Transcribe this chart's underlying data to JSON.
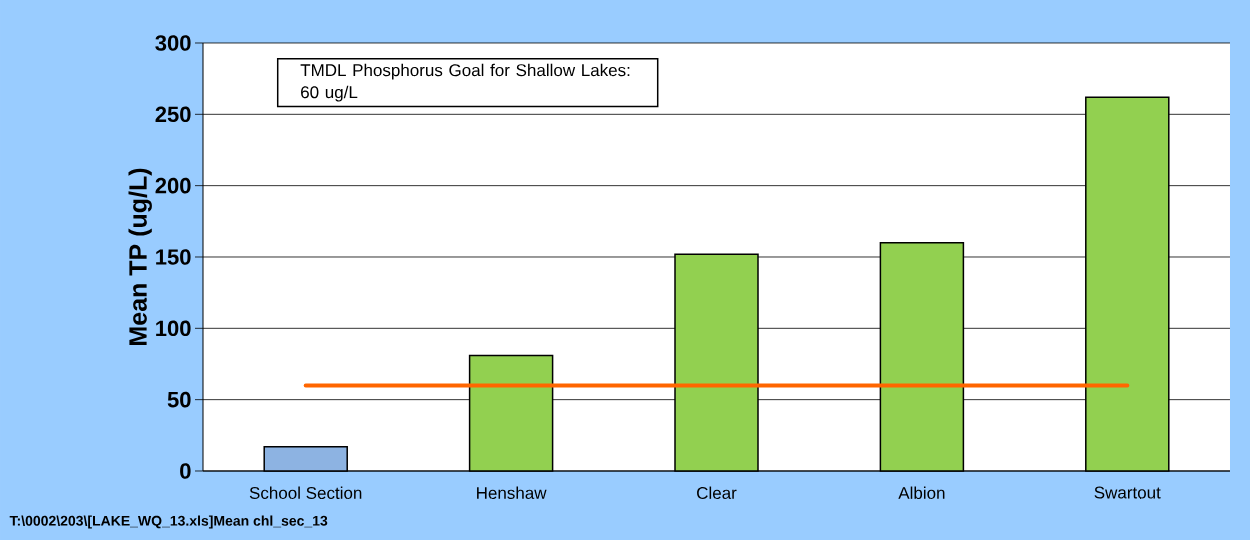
{
  "chart_data": {
    "type": "bar",
    "ylabel": "Mean TP (ug/L)",
    "categories": [
      "School Section",
      "Henshaw",
      "Clear",
      "Albion",
      "Swartout"
    ],
    "values": [
      17,
      81,
      152,
      160,
      262
    ],
    "colors": [
      "#8db3e2",
      "#92d050",
      "#92d050",
      "#92d050",
      "#92d050"
    ],
    "ylim": [
      0,
      300
    ],
    "yticks": [
      0,
      50,
      100,
      150,
      200,
      250,
      300
    ],
    "grid": "y",
    "ref_lines": [
      {
        "axis": "y",
        "value": 60,
        "color": "#ff6600"
      }
    ],
    "annotations": [
      "TMDL Phosphorus Goal for Shallow Lakes: 60 ug/L",
      "T:\\0002\\203\\[LAKE_WQ_13.xls]Mean chl_sec_13"
    ]
  }
}
